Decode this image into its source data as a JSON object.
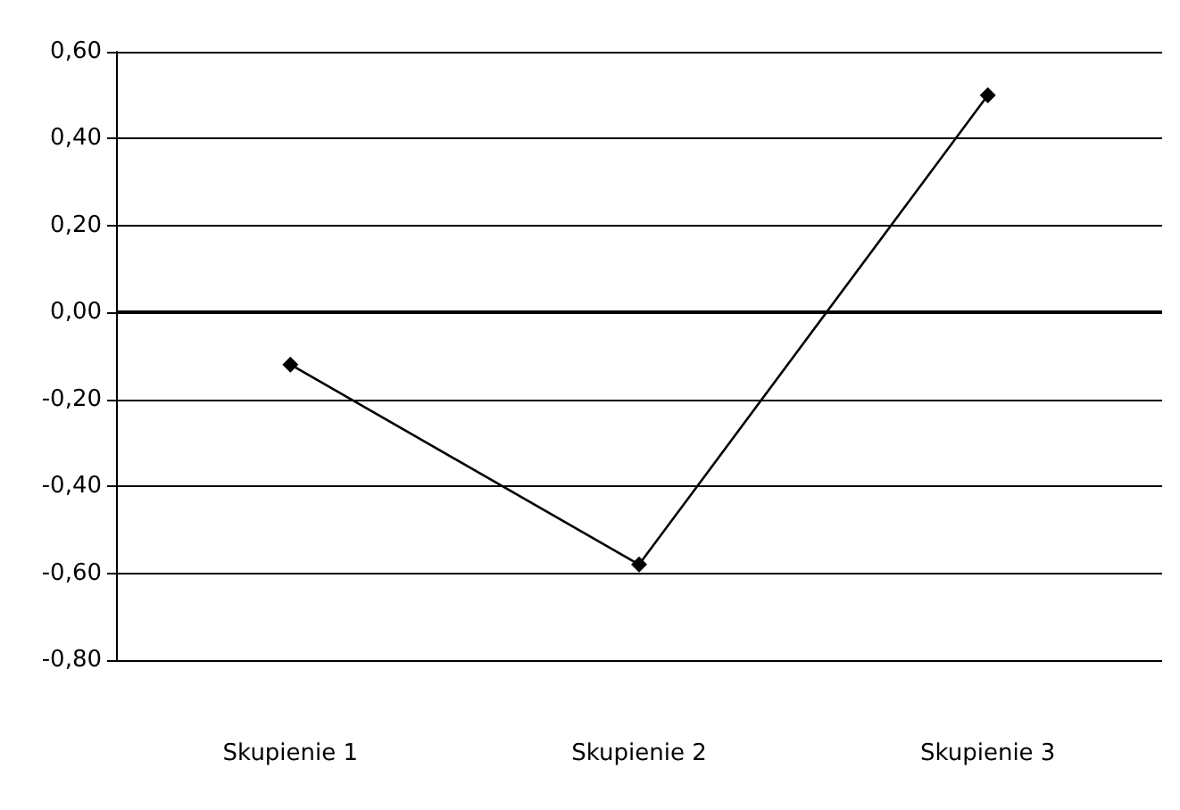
{
  "chart_data": {
    "type": "line",
    "categories": [
      "Skupienie 1",
      "Skupienie 2",
      "Skupienie 3"
    ],
    "series": [
      {
        "color": "#000000",
        "values": [
          -0.12,
          -0.58,
          0.5
        ]
      }
    ],
    "ylim": [
      -0.8,
      0.6
    ],
    "yticks": [
      {
        "value": -0.8,
        "label": "-0,80"
      },
      {
        "value": -0.6,
        "label": "-0,60"
      },
      {
        "value": -0.4,
        "label": "-0,40"
      },
      {
        "value": -0.2,
        "label": "-0,20"
      },
      {
        "value": 0,
        "label": "0,00"
      },
      {
        "value": 0.2,
        "label": "0,20"
      },
      {
        "value": 0.4,
        "label": "0,40"
      },
      {
        "value": 0.6,
        "label": "0,60"
      }
    ],
    "ref_lines": [
      {
        "axis": "y",
        "value": 0,
        "color": "#000000",
        "line_style": "solid"
      }
    ],
    "grid": "y",
    "marker": "diamond",
    "line_style": "solid"
  }
}
